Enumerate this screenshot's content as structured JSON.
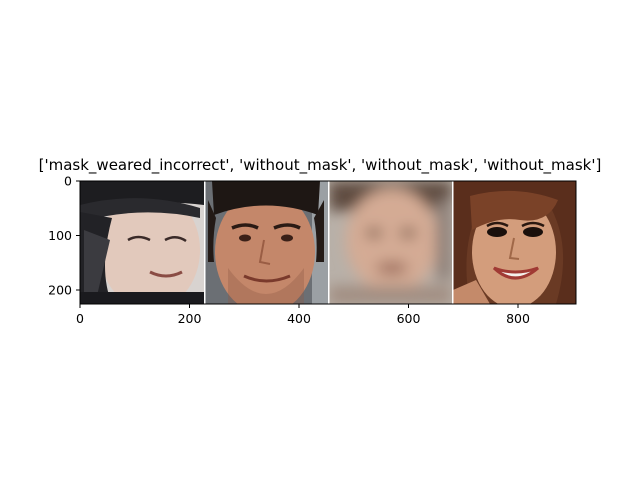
{
  "title": "['mask_weared_incorrect', 'without_mask', 'without_mask', 'without_mask']",
  "axes": {
    "x_ticks": [
      "0",
      "200",
      "400",
      "600",
      "800"
    ],
    "y_ticks": [
      "0",
      "100",
      "200"
    ]
  },
  "tiles": [
    {
      "label": "mask_weared_incorrect",
      "icon": "face-with-dark-cap-icon"
    },
    {
      "label": "without_mask",
      "icon": "smiling-man-face-icon"
    },
    {
      "label": "without_mask",
      "icon": "blurred-face-icon"
    },
    {
      "label": "without_mask",
      "icon": "smiling-woman-face-icon"
    }
  ]
}
